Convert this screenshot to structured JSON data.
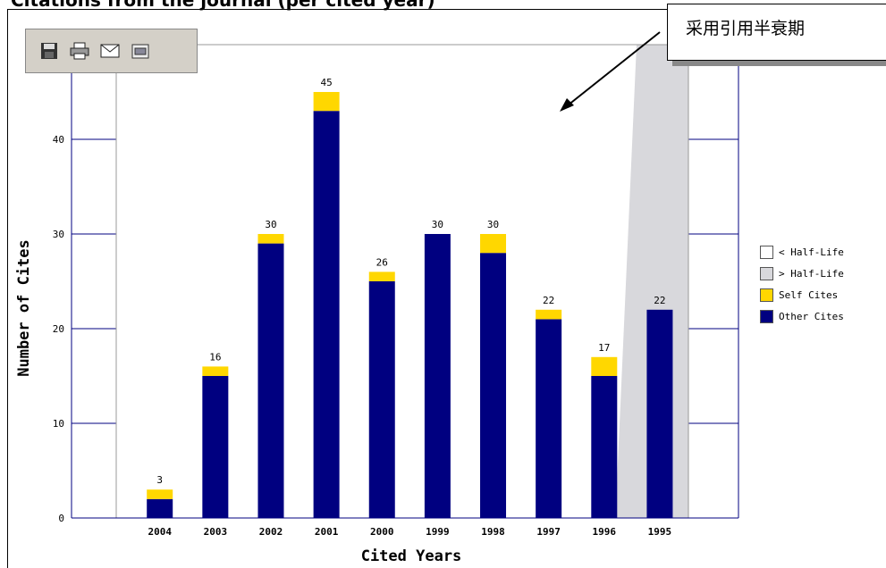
{
  "page": {
    "top_title": "Citations from the journal (per cited year)",
    "callout_text": "采用引用半衰期"
  },
  "toolbar": {
    "buttons": [
      {
        "name": "save-icon"
      },
      {
        "name": "print-icon"
      },
      {
        "name": "email-icon"
      },
      {
        "name": "export-icon"
      }
    ]
  },
  "legend": {
    "items": [
      {
        "label": "< Half-Life",
        "color": "#ffffff"
      },
      {
        "label": "> Half-Life",
        "color": "#d8d8dc"
      },
      {
        "label": "Self Cites",
        "color": "#ffd700"
      },
      {
        "label": "Other Cites",
        "color": "#000080"
      }
    ]
  },
  "chart_data": {
    "type": "bar",
    "stacked": true,
    "categories": [
      "2004",
      "2003",
      "2002",
      "2001",
      "2000",
      "1999",
      "1998",
      "1997",
      "1996",
      "1995"
    ],
    "series": [
      {
        "name": "Other Cites",
        "color": "#000080",
        "values": [
          2,
          15,
          29,
          43,
          25,
          30,
          28,
          21,
          15,
          22
        ]
      },
      {
        "name": "Self Cites",
        "color": "#ffd700",
        "values": [
          1,
          1,
          1,
          2,
          1,
          0,
          2,
          1,
          2,
          0
        ]
      }
    ],
    "totals": [
      3,
      16,
      30,
      45,
      26,
      30,
      30,
      22,
      17,
      22
    ],
    "xlabel": "Cited Years",
    "ylabel": "Number of Cites",
    "ylim": [
      0,
      50
    ],
    "yticks": [
      0,
      10,
      20,
      30,
      40
    ],
    "half_life_region_start_category": "1996",
    "colors": {
      "half_life_region": "#d8d8dc",
      "axis": "#000080"
    }
  }
}
